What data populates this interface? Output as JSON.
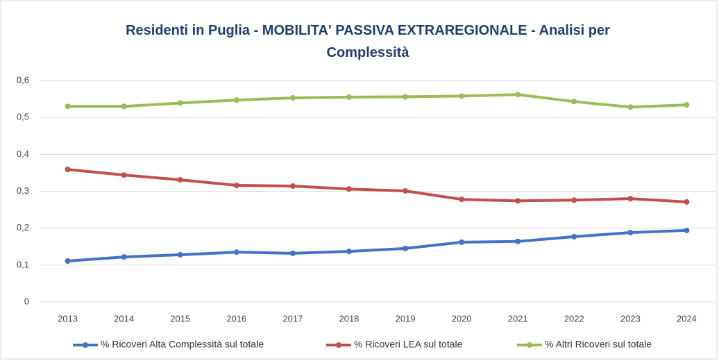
{
  "chart_data": {
    "type": "line",
    "title": "Residenti in Puglia - MOBILITA' PASSIVA EXTRAREGIONALE - Analisi per Complessità",
    "categories": [
      "2013",
      "2014",
      "2015",
      "2016",
      "2017",
      "2018",
      "2019",
      "2020",
      "2021",
      "2022",
      "2023",
      "2024"
    ],
    "series": [
      {
        "name": "% Ricoveri Alta Complessità sul totale",
        "color": "#4472c4",
        "values": [
          0.111,
          0.122,
          0.128,
          0.135,
          0.132,
          0.137,
          0.145,
          0.162,
          0.164,
          0.177,
          0.188,
          0.194
        ]
      },
      {
        "name": "% Ricoveri LEA sul totale",
        "color": "#c0504d",
        "values": [
          0.359,
          0.344,
          0.331,
          0.316,
          0.314,
          0.306,
          0.301,
          0.278,
          0.274,
          0.276,
          0.28,
          0.271
        ]
      },
      {
        "name": "% Altri Ricoveri sul totale",
        "color": "#9bbb59",
        "values": [
          0.53,
          0.53,
          0.539,
          0.547,
          0.553,
          0.555,
          0.556,
          0.558,
          0.562,
          0.543,
          0.528,
          0.534
        ]
      }
    ],
    "ylim": [
      0,
      0.6
    ],
    "yticks": [
      0,
      {
        "value": 0.1,
        "label": "0,1"
      },
      {
        "value": 0.2,
        "label": "0,2"
      },
      {
        "value": 0.3,
        "label": "0,3"
      },
      {
        "value": 0.4,
        "label": "0,4"
      },
      {
        "value": 0.5,
        "label": "0,5"
      },
      {
        "value": 0.6,
        "label": "0,6"
      }
    ],
    "grid": true,
    "legend": "bottom"
  }
}
